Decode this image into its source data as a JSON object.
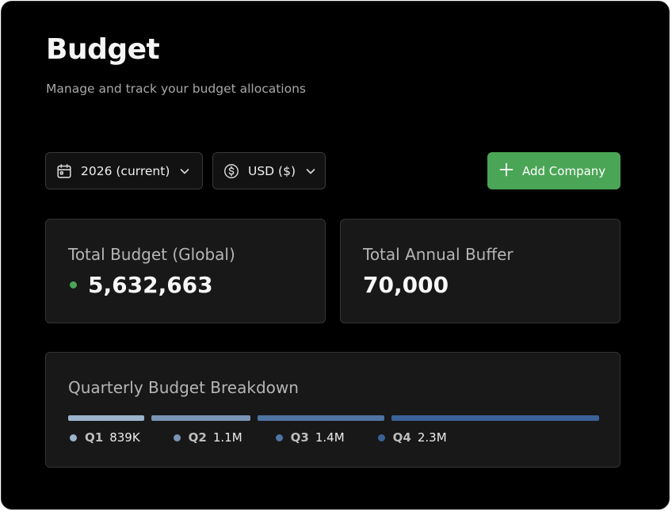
{
  "header": {
    "title": "Budget",
    "subtitle": "Manage and track your budget allocations"
  },
  "toolbar": {
    "year_select": {
      "value": "2026 (current)",
      "icon": "calendar-icon"
    },
    "currency_select": {
      "value": "USD ($)",
      "icon": "dollar-circle-icon"
    },
    "add_button": {
      "label": "Add Company",
      "icon": "plus-icon",
      "color": "#4aa556"
    }
  },
  "cards": {
    "total_budget": {
      "label": "Total Budget (Global)",
      "value": "5,632,663",
      "status_color": "#4aa556"
    },
    "annual_buffer": {
      "label": "Total Annual Buffer",
      "value": "70,000"
    }
  },
  "quarterly": {
    "title": "Quarterly Budget Breakdown",
    "quarters": [
      {
        "name": "Q1",
        "display": "839K",
        "amount": 839000,
        "color": "#9cb4cc"
      },
      {
        "name": "Q2",
        "display": "1.1M",
        "amount": 1100000,
        "color": "#7a94b4"
      },
      {
        "name": "Q3",
        "display": "1.4M",
        "amount": 1400000,
        "color": "#4f73a3"
      },
      {
        "name": "Q4",
        "display": "2.3M",
        "amount": 2300000,
        "color": "#3a6298"
      }
    ]
  }
}
